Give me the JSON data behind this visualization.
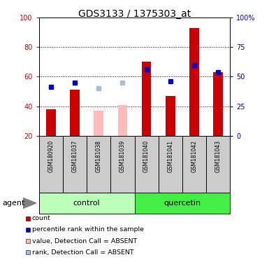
{
  "title": "GDS3133 / 1375303_at",
  "samples": [
    "GSM180920",
    "GSM181037",
    "GSM181038",
    "GSM181039",
    "GSM181040",
    "GSM181041",
    "GSM181042",
    "GSM181043"
  ],
  "count_values": [
    38,
    51,
    null,
    null,
    70,
    47,
    93,
    63
  ],
  "rank_values": [
    53,
    56,
    null,
    null,
    65,
    57,
    68,
    63
  ],
  "absent_count_values": [
    null,
    null,
    37,
    41,
    null,
    null,
    null,
    null
  ],
  "absent_rank_values": [
    null,
    null,
    52,
    56,
    null,
    null,
    null,
    null
  ],
  "ylim_left": [
    20,
    100
  ],
  "yticks_left": [
    20,
    40,
    60,
    80,
    100
  ],
  "yticks_right": [
    0,
    25,
    50,
    75,
    100
  ],
  "ytick_labels_right": [
    "0",
    "25",
    "50",
    "75",
    "100%"
  ],
  "control_color": "#bbffbb",
  "quercetin_color": "#44ee44",
  "bar_color": "#cc0000",
  "absent_bar_color": "#ffbbbb",
  "rank_color": "#0000cc",
  "absent_rank_color": "#aabbdd",
  "sample_bg": "#cccccc",
  "plot_bg": "#ffffff",
  "bar_width": 0.4,
  "marker_size": 5,
  "legend_labels": [
    "count",
    "percentile rank within the sample",
    "value, Detection Call = ABSENT",
    "rank, Detection Call = ABSENT"
  ],
  "legend_colors": [
    "#cc0000",
    "#0000cc",
    "#ffbbbb",
    "#aabbdd"
  ]
}
